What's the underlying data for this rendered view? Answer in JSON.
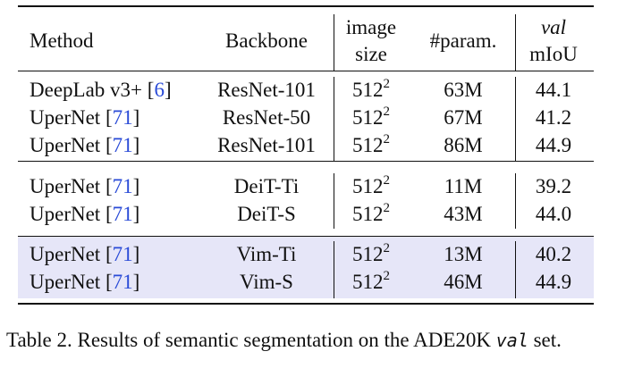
{
  "table": {
    "headers": {
      "method": "Method",
      "backbone": "Backbone",
      "size_line1": "image",
      "size_line2": "size",
      "params": "#param.",
      "miou_line1": "val",
      "miou_line2": "mIoU"
    },
    "groups": [
      {
        "highlighted": false,
        "rows": [
          {
            "method": "DeepLab v3+",
            "ref": "6",
            "backbone": "ResNet-101",
            "size_base": "512",
            "size_exp": "2",
            "params": "63M",
            "miou": "44.1"
          },
          {
            "method": "UperNet",
            "ref": "71",
            "backbone": "ResNet-50",
            "size_base": "512",
            "size_exp": "2",
            "params": "67M",
            "miou": "41.2"
          },
          {
            "method": "UperNet",
            "ref": "71",
            "backbone": "ResNet-101",
            "size_base": "512",
            "size_exp": "2",
            "params": "86M",
            "miou": "44.9"
          }
        ]
      },
      {
        "highlighted": false,
        "rows": [
          {
            "method": "UperNet",
            "ref": "71",
            "backbone": "DeiT-Ti",
            "size_base": "512",
            "size_exp": "2",
            "params": "11M",
            "miou": "39.2"
          },
          {
            "method": "UperNet",
            "ref": "71",
            "backbone": "DeiT-S",
            "size_base": "512",
            "size_exp": "2",
            "params": "43M",
            "miou": "44.0"
          }
        ]
      },
      {
        "highlighted": true,
        "rows": [
          {
            "method": "UperNet",
            "ref": "71",
            "backbone": "Vim-Ti",
            "size_base": "512",
            "size_exp": "2",
            "params": "13M",
            "miou": "40.2"
          },
          {
            "method": "UperNet",
            "ref": "71",
            "backbone": "Vim-S",
            "size_base": "512",
            "size_exp": "2",
            "params": "46M",
            "miou": "44.9"
          }
        ]
      }
    ]
  },
  "caption": {
    "prefix": "Table 2.  Results of semantic segmentation on the ADE20K",
    "mono": "val",
    "suffix": "set."
  },
  "colors": {
    "highlight": "#e6e6f8",
    "reference": "#2a4bd7",
    "text": "#111111"
  }
}
